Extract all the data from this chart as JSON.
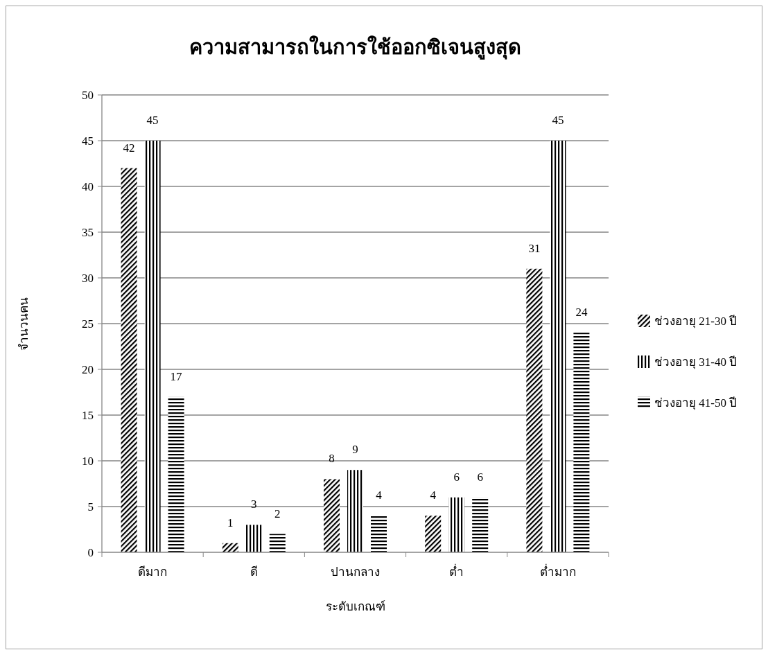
{
  "chart_data": {
    "type": "bar",
    "title": "ความสามารถในการใช้ออกซิเจนสูงสุด",
    "xlabel": "ระดับเกณฑ์",
    "ylabel": "จำนวนคน",
    "categories": [
      "ดีมาก",
      "ดี",
      "ปานกลาง",
      "ต่ำ",
      "ต่ำมาก"
    ],
    "series": [
      {
        "name": "ช่วงอายุ 21-30 ปี",
        "color": "#000000",
        "values": [
          42,
          1,
          8,
          4,
          31
        ]
      },
      {
        "name": "ช่วงอายุ 31-40 ปี",
        "color": "#000000",
        "values": [
          45,
          3,
          9,
          6,
          45
        ]
      },
      {
        "name": "ช่วงอายุ 41-50 ปี",
        "color": "#000000",
        "values": [
          17,
          2,
          4,
          6,
          24
        ]
      }
    ],
    "ylim": [
      0,
      50
    ],
    "yticks": [
      0,
      5,
      10,
      15,
      20,
      25,
      30,
      35,
      40,
      45,
      50
    ],
    "grid": "y",
    "legend": "right",
    "data_labels": true
  }
}
